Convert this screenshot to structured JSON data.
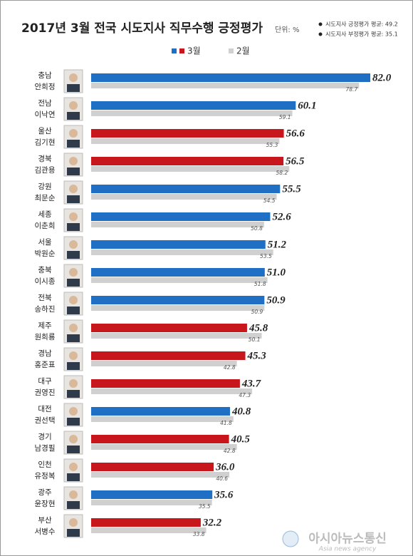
{
  "chart_data": {
    "type": "bar",
    "title": "2017년 3월 전국 시도지사 직무수행 긍정평가",
    "unit": "단위: %",
    "notes": [
      "시도지사 긍정평가 평균: 49.2",
      "시도지사 부정평가 평균: 35.1"
    ],
    "categories": [
      "충남",
      "전남",
      "울산",
      "경북",
      "강원",
      "세종",
      "서울",
      "충북",
      "전북",
      "제주",
      "경남",
      "대구",
      "대전",
      "경기",
      "인천",
      "광주",
      "부산"
    ],
    "names": [
      "안희정",
      "이낙연",
      "김기현",
      "김관용",
      "최문순",
      "이춘희",
      "박원순",
      "이시종",
      "송하진",
      "원희룡",
      "홍준표",
      "권영진",
      "권선택",
      "남경필",
      "유정복",
      "윤장현",
      "서병수"
    ],
    "series": [
      {
        "name": "3월",
        "colors": [
          "#1f6fc5",
          "#1f6fc5",
          "#c8161d",
          "#c8161d",
          "#1f6fc5",
          "#1f6fc5",
          "#1f6fc5",
          "#1f6fc5",
          "#1f6fc5",
          "#c8161d",
          "#c8161d",
          "#c8161d",
          "#1f6fc5",
          "#c8161d",
          "#c8161d",
          "#1f6fc5",
          "#c8161d"
        ],
        "values": [
          82.0,
          60.1,
          56.6,
          56.5,
          55.5,
          52.6,
          51.2,
          51.0,
          50.9,
          45.8,
          45.3,
          43.7,
          40.8,
          40.5,
          36.0,
          35.6,
          32.2
        ],
        "value_labels": [
          "82.0",
          "60.1",
          "56.6",
          "56.5",
          "55.5",
          "52.6",
          "51.2",
          "51.0",
          "50.9",
          "45.8",
          "45.3",
          "43.7",
          "40.8",
          "40.5",
          "36.0",
          "35.6",
          "32.2"
        ]
      },
      {
        "name": "2월",
        "color": "#d0d0d0",
        "values": [
          78.7,
          59.1,
          55.3,
          58.2,
          54.5,
          50.8,
          53.5,
          51.8,
          50.9,
          50.1,
          42.8,
          47.3,
          41.8,
          42.8,
          40.6,
          35.5,
          33.8
        ]
      }
    ],
    "watermark": [
      "아시아뉴스통신",
      "Asia news agency"
    ]
  }
}
